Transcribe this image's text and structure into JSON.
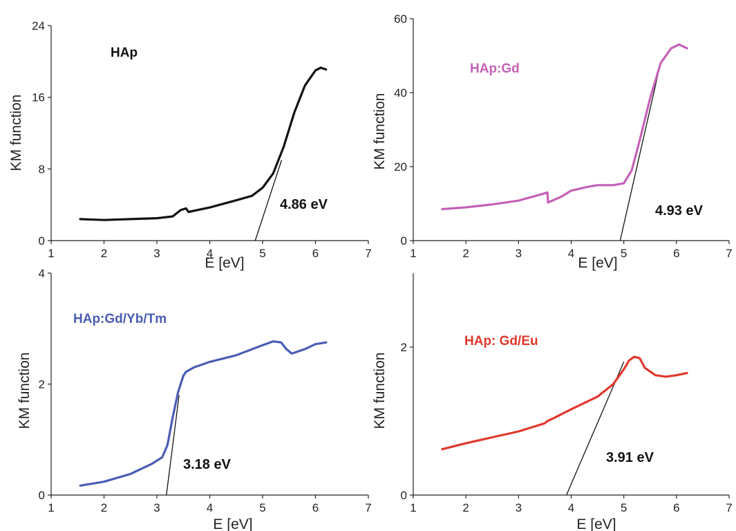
{
  "chart_data": [
    {
      "type": "line",
      "title": "HAp",
      "xlabel": "E [eV]",
      "ylabel": "KM function",
      "xlim": [
        1,
        7
      ],
      "ylim": [
        0,
        24
      ],
      "xticks": [
        "1",
        "2",
        "3",
        "4",
        "5",
        "6",
        "7"
      ],
      "yticks": [
        "0",
        "8",
        "16",
        "24"
      ],
      "grid": false,
      "color": "#111111",
      "series": [
        {
          "x": [
            1.55,
            2.0,
            2.5,
            3.0,
            3.3,
            3.45,
            3.55,
            3.6,
            4.0,
            4.5,
            4.8,
            5.0,
            5.2,
            5.4,
            5.6,
            5.8,
            6.0,
            6.1,
            6.2
          ],
          "y": [
            2.4,
            2.3,
            2.4,
            2.5,
            2.7,
            3.4,
            3.6,
            3.2,
            3.7,
            4.5,
            5.0,
            5.9,
            7.5,
            10.5,
            14.3,
            17.3,
            19.0,
            19.3,
            19.1
          ]
        }
      ],
      "tangent": {
        "x": [
          4.86,
          5.36
        ],
        "y": [
          0,
          9.0
        ]
      },
      "annotation": "4.86 eV"
    },
    {
      "type": "line",
      "title": "HAp:Gd",
      "xlabel": "E [eV]",
      "ylabel": "KM function",
      "xlim": [
        1,
        7
      ],
      "ylim": [
        0,
        60
      ],
      "xticks": [
        "1",
        "2",
        "3",
        "4",
        "5",
        "6",
        "7"
      ],
      "yticks": [
        "0",
        "20",
        "40",
        "60"
      ],
      "grid": false,
      "color": "#c461b6",
      "series": [
        {
          "x": [
            1.55,
            2.0,
            2.5,
            3.0,
            3.3,
            3.55,
            3.56,
            3.8,
            4.0,
            4.3,
            4.5,
            4.8,
            5.0,
            5.15,
            5.3,
            5.5,
            5.7,
            5.9,
            6.05,
            6.2
          ],
          "y": [
            8.5,
            9.0,
            9.8,
            10.8,
            12.0,
            13.0,
            10.3,
            11.8,
            13.5,
            14.5,
            15.0,
            15.0,
            15.5,
            19.0,
            27.0,
            38.5,
            48.0,
            52.0,
            53.0,
            52.0
          ]
        }
      ],
      "tangent": {
        "x": [
          4.93,
          5.65
        ],
        "y": [
          0,
          45.0
        ]
      },
      "annotation": "4.93 eV"
    },
    {
      "type": "line",
      "title": "HAp:Gd/Yb/Tm",
      "xlabel": "E [eV]",
      "ylabel": "KM function",
      "xlim": [
        1,
        7
      ],
      "ylim": [
        0,
        4
      ],
      "xticks": [
        "1",
        "2",
        "3",
        "4",
        "5",
        "6",
        "7"
      ],
      "yticks": [
        "0",
        "2",
        "4"
      ],
      "grid": false,
      "color": "#4a5db3",
      "series": [
        {
          "x": [
            1.55,
            2.0,
            2.5,
            2.9,
            3.1,
            3.2,
            3.3,
            3.4,
            3.5,
            3.55,
            3.7,
            4.0,
            4.5,
            5.0,
            5.2,
            5.35,
            5.45,
            5.55,
            5.8,
            6.0,
            6.2
          ],
          "y": [
            0.17,
            0.24,
            0.38,
            0.56,
            0.68,
            0.9,
            1.4,
            1.85,
            2.15,
            2.22,
            2.3,
            2.4,
            2.52,
            2.7,
            2.77,
            2.75,
            2.63,
            2.55,
            2.63,
            2.72,
            2.75
          ]
        }
      ],
      "tangent": {
        "x": [
          3.18,
          3.42
        ],
        "y": [
          0,
          1.8
        ]
      },
      "annotation": "3.18 eV"
    },
    {
      "type": "line",
      "title": "HAp: Gd/Eu",
      "xlabel": "E [eV]",
      "ylabel": "KM function",
      "xlim": [
        1,
        7
      ],
      "ylim": [
        0,
        3
      ],
      "xticks": [
        "1",
        "2",
        "3",
        "4",
        "5",
        "6",
        "7"
      ],
      "yticks": [
        "0",
        "2"
      ],
      "grid": false,
      "color": "#e0382d",
      "series": [
        {
          "x": [
            1.55,
            2.0,
            2.5,
            3.0,
            3.5,
            3.55,
            3.7,
            4.0,
            4.5,
            4.8,
            5.0,
            5.1,
            5.2,
            5.3,
            5.4,
            5.6,
            5.8,
            6.0,
            6.2
          ],
          "y": [
            0.62,
            0.7,
            0.78,
            0.86,
            0.97,
            1.0,
            1.05,
            1.16,
            1.33,
            1.5,
            1.7,
            1.82,
            1.87,
            1.85,
            1.72,
            1.62,
            1.6,
            1.62,
            1.65
          ]
        }
      ],
      "tangent": {
        "x": [
          3.91,
          5.0
        ],
        "y": [
          0,
          1.8
        ]
      },
      "annotation": "3.91 eV"
    }
  ]
}
